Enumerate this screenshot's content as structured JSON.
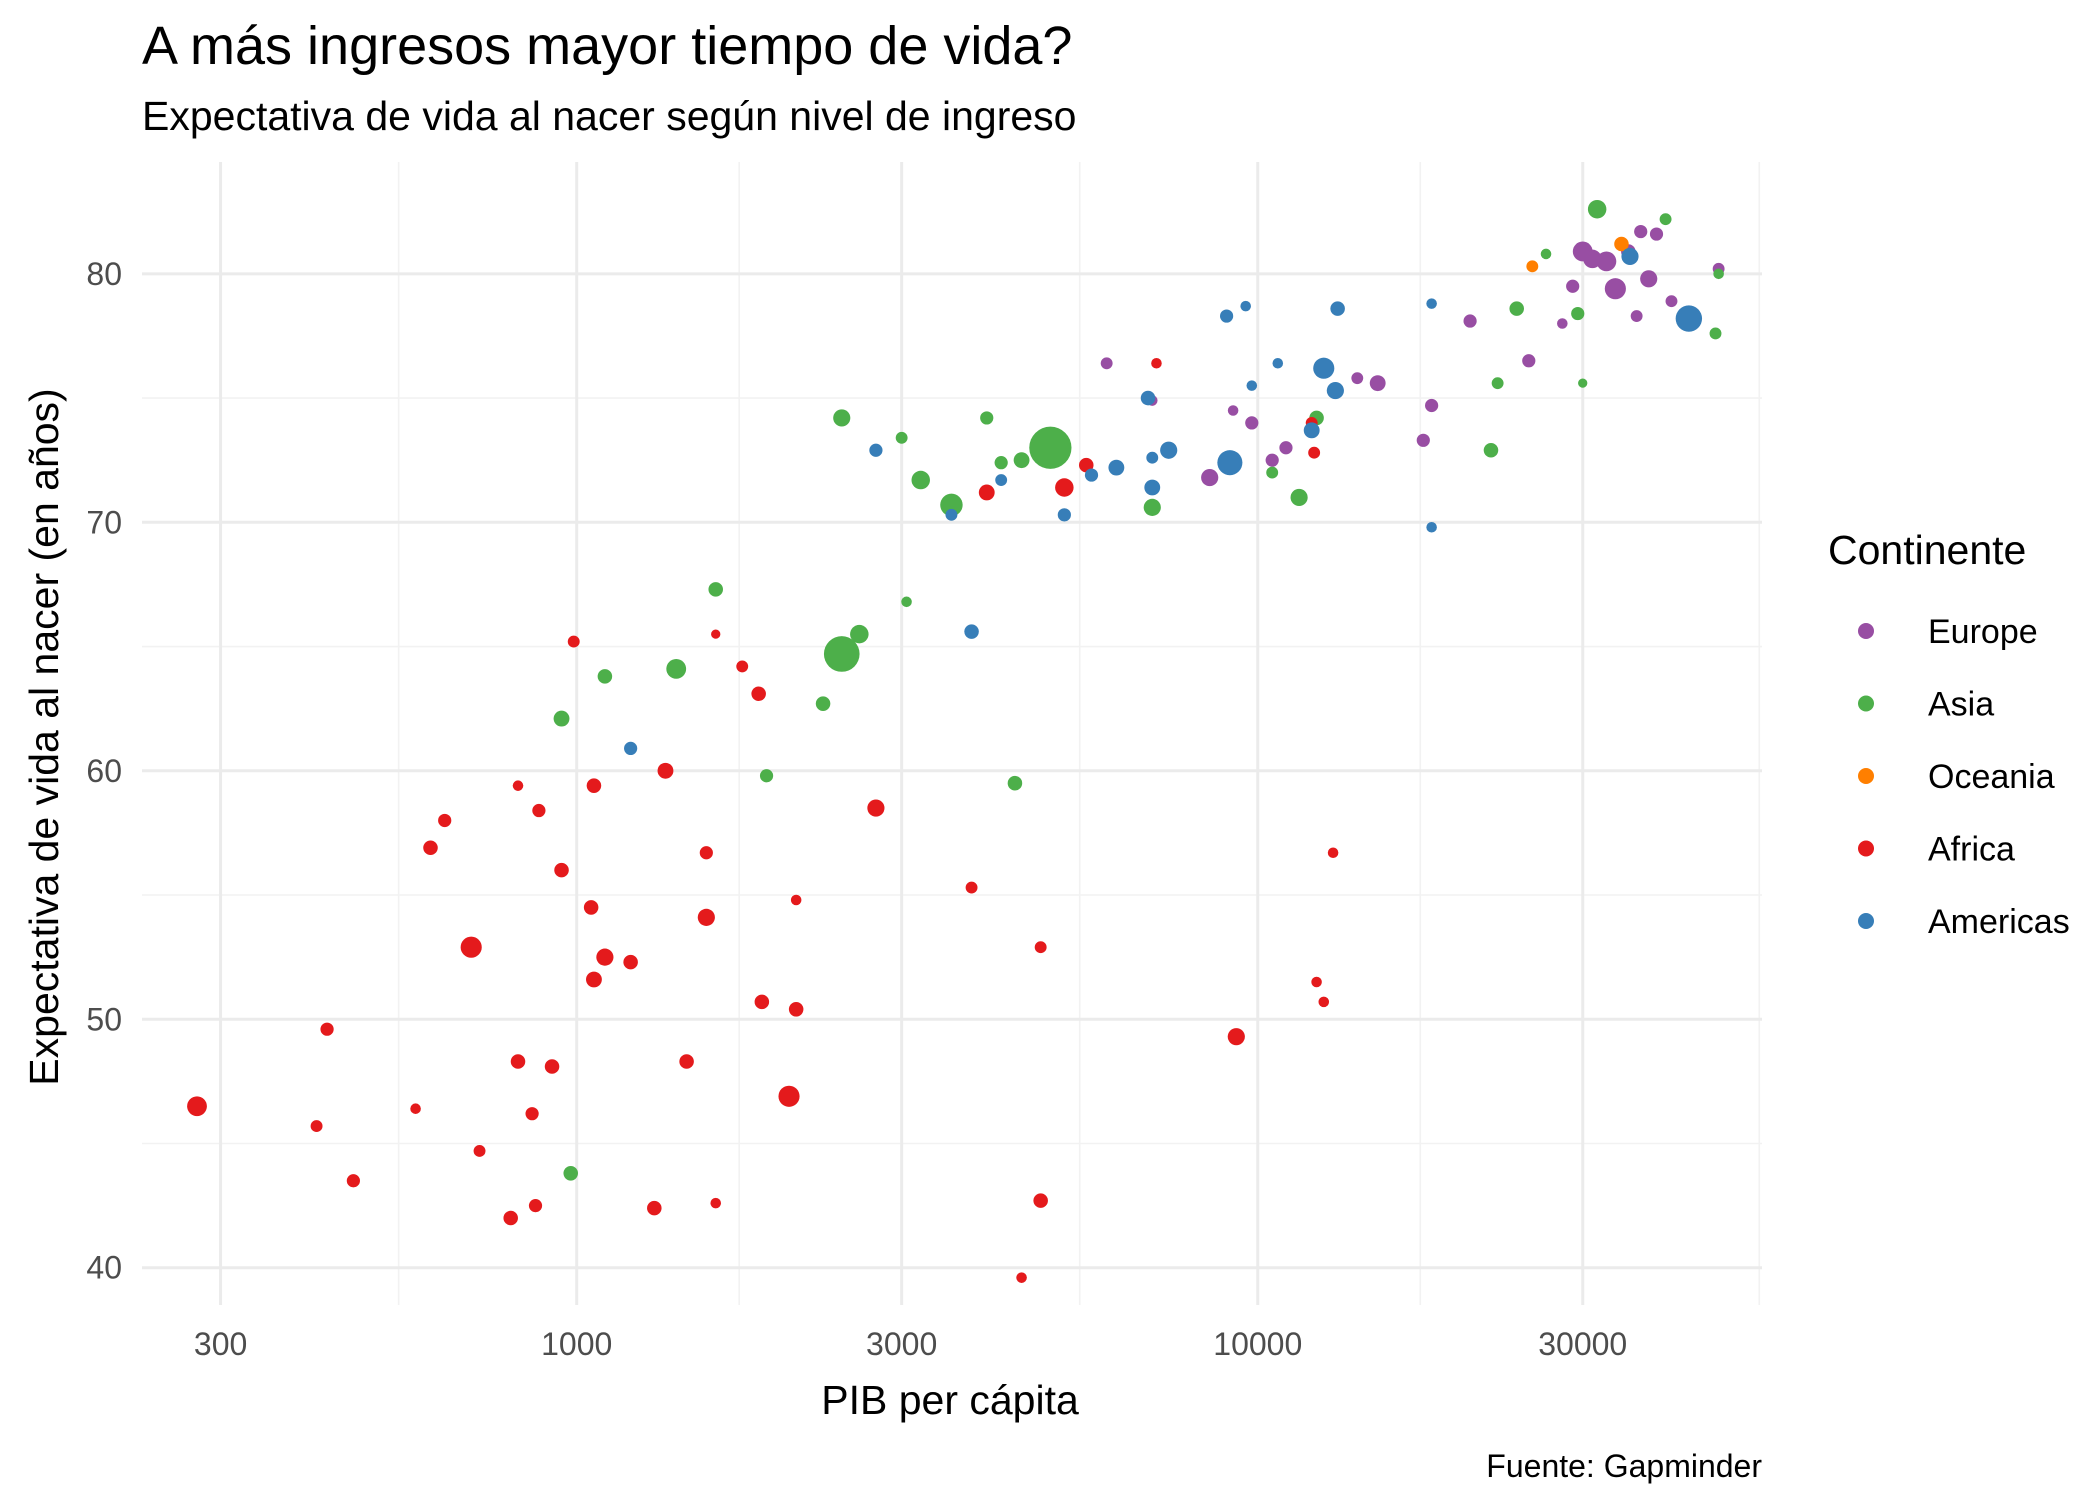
{
  "chart_data": {
    "type": "scatter",
    "title": "A más ingresos mayor tiempo de vida?",
    "subtitle": "Expectativa de vida al nacer según nivel de ingreso",
    "xlabel": "PIB per cápita",
    "ylabel": "Expectativa de vida al nacer (en años)",
    "caption": "Fuente: Gapminder",
    "x_scale": "log10",
    "xlim": [
      230,
      55000
    ],
    "ylim": [
      38.5,
      84.5
    ],
    "x_ticks": [
      300,
      1000,
      3000,
      10000,
      30000
    ],
    "x_tick_labels": [
      "300",
      "1000",
      "3000",
      "10000",
      "30000"
    ],
    "y_ticks": [
      40,
      50,
      60,
      70,
      80
    ],
    "y_tick_labels": [
      "40",
      "50",
      "60",
      "70",
      "80"
    ],
    "legend": {
      "title": "Continente",
      "position": "right",
      "entries": [
        {
          "label": "Europe",
          "color": "#984EA3"
        },
        {
          "label": "Asia",
          "color": "#4DAF4A"
        },
        {
          "label": "Oceania",
          "color": "#FF7F00"
        },
        {
          "label": "Africa",
          "color": "#E41A1C"
        },
        {
          "label": "Americas",
          "color": "#377EB8"
        }
      ]
    },
    "series": [
      {
        "name": "Europe",
        "color": "#984EA3",
        "points": [
          [
            30000,
            80.9,
            1.5
          ],
          [
            31000,
            80.6,
            1.4
          ],
          [
            32500,
            80.5,
            1.5
          ],
          [
            33500,
            79.4,
            1.6
          ],
          [
            35000,
            80.9,
            1.1
          ],
          [
            36000,
            78.3,
            0.9
          ],
          [
            37500,
            79.8,
            1.3
          ],
          [
            36500,
            81.7,
            1.0
          ],
          [
            38500,
            81.6,
            1.0
          ],
          [
            40500,
            78.9,
            0.9
          ],
          [
            47500,
            80.2,
            0.9
          ],
          [
            29000,
            79.5,
            1.0
          ],
          [
            28000,
            78.0,
            0.8
          ],
          [
            25000,
            76.5,
            1.0
          ],
          [
            20500,
            78.1,
            1.0
          ],
          [
            18000,
            74.7,
            1.0
          ],
          [
            17500,
            73.3,
            1.0
          ],
          [
            15000,
            75.6,
            1.2
          ],
          [
            14000,
            75.8,
            0.9
          ],
          [
            11000,
            73.0,
            1.0
          ],
          [
            10500,
            72.5,
            1.0
          ],
          [
            9800,
            74.0,
            1.0
          ],
          [
            9200,
            74.5,
            0.8
          ],
          [
            8500,
            71.8,
            1.3
          ],
          [
            6000,
            76.4,
            0.9
          ],
          [
            7000,
            74.9,
            0.8
          ]
        ]
      },
      {
        "name": "Asia",
        "color": "#4DAF4A",
        "points": [
          [
            31500,
            82.6,
            1.4
          ],
          [
            39700,
            82.2,
            0.9
          ],
          [
            26500,
            80.8,
            0.8
          ],
          [
            47500,
            80.0,
            0.8
          ],
          [
            29500,
            78.4,
            1.0
          ],
          [
            24000,
            78.6,
            1.1
          ],
          [
            47000,
            77.6,
            0.9
          ],
          [
            30000,
            75.6,
            0.7
          ],
          [
            22500,
            75.6,
            0.9
          ],
          [
            22000,
            72.9,
            1.1
          ],
          [
            12200,
            74.2,
            1.1
          ],
          [
            11500,
            71.0,
            1.3
          ],
          [
            10500,
            72.0,
            0.9
          ],
          [
            4500,
            72.5,
            1.2
          ],
          [
            4960,
            73.0,
            3.2
          ],
          [
            7000,
            70.6,
            1.3
          ],
          [
            4200,
            72.4,
            1.0
          ],
          [
            4000,
            74.2,
            1.0
          ],
          [
            3000,
            73.4,
            0.9
          ],
          [
            3200,
            71.7,
            1.4
          ],
          [
            3550,
            70.7,
            1.7
          ],
          [
            2450,
            74.2,
            1.3
          ],
          [
            3050,
            66.8,
            0.8
          ],
          [
            2600,
            65.5,
            1.4
          ],
          [
            2450,
            64.7,
            2.7
          ],
          [
            2300,
            62.7,
            1.1
          ],
          [
            1600,
            67.3,
            1.1
          ],
          [
            1400,
            64.1,
            1.5
          ],
          [
            1100,
            63.8,
            1.1
          ],
          [
            950,
            62.1,
            1.2
          ],
          [
            4400,
            59.5,
            1.1
          ],
          [
            1900,
            59.8,
            1.0
          ],
          [
            980,
            43.8,
            1.1
          ]
        ]
      },
      {
        "name": "Oceania",
        "color": "#FF7F00",
        "points": [
          [
            25300,
            80.3,
            0.9
          ],
          [
            34200,
            81.2,
            1.1
          ]
        ]
      },
      {
        "name": "Africa",
        "color": "#E41A1C",
        "points": [
          [
            12000,
            74.0,
            0.9
          ],
          [
            7100,
            76.4,
            0.8
          ],
          [
            5600,
            72.3,
            1.1
          ],
          [
            5200,
            71.4,
            1.4
          ],
          [
            4000,
            71.2,
            1.2
          ],
          [
            12100,
            72.8,
            0.9
          ],
          [
            9300,
            49.3,
            1.3
          ],
          [
            12900,
            56.7,
            0.8
          ],
          [
            12200,
            51.5,
            0.8
          ],
          [
            12500,
            50.7,
            0.8
          ],
          [
            4800,
            52.9,
            0.9
          ],
          [
            4800,
            42.7,
            1.1
          ],
          [
            4500,
            39.6,
            0.8
          ],
          [
            3800,
            55.3,
            0.9
          ],
          [
            2750,
            58.5,
            1.3
          ],
          [
            2100,
            54.8,
            0.8
          ],
          [
            2100,
            50.4,
            1.1
          ],
          [
            2050,
            46.9,
            1.6
          ],
          [
            1870,
            50.7,
            1.1
          ],
          [
            1750,
            64.2,
            0.9
          ],
          [
            1850,
            63.1,
            1.1
          ],
          [
            1600,
            65.5,
            0.7
          ],
          [
            1350,
            60.0,
            1.2
          ],
          [
            1550,
            56.7,
            1.0
          ],
          [
            1550,
            54.1,
            1.3
          ],
          [
            1450,
            48.3,
            1.1
          ],
          [
            1600,
            42.6,
            0.8
          ],
          [
            1300,
            42.4,
            1.1
          ],
          [
            1200,
            52.3,
            1.1
          ],
          [
            1100,
            52.5,
            1.3
          ],
          [
            1060,
            51.6,
            1.2
          ],
          [
            1050,
            54.5,
            1.1
          ],
          [
            1060,
            59.4,
            1.1
          ],
          [
            990,
            65.2,
            0.9
          ],
          [
            950,
            56.0,
            1.1
          ],
          [
            880,
            58.4,
            1.0
          ],
          [
            820,
            59.4,
            0.8
          ],
          [
            860,
            46.2,
            1.0
          ],
          [
            870,
            42.5,
            1.0
          ],
          [
            920,
            48.1,
            1.1
          ],
          [
            820,
            48.3,
            1.1
          ],
          [
            800,
            42.0,
            1.1
          ],
          [
            700,
            52.9,
            1.6
          ],
          [
            720,
            44.7,
            0.9
          ],
          [
            640,
            58.0,
            1.0
          ],
          [
            610,
            56.9,
            1.1
          ],
          [
            580,
            46.4,
            0.8
          ],
          [
            430,
            49.6,
            1.0
          ],
          [
            415,
            45.7,
            0.9
          ],
          [
            470,
            43.5,
            1.0
          ],
          [
            277,
            46.5,
            1.5
          ]
        ]
      },
      {
        "name": "Americas",
        "color": "#377EB8",
        "points": [
          [
            42950,
            78.2,
            2.0
          ],
          [
            35200,
            80.7,
            1.3
          ],
          [
            13100,
            78.6,
            1.1
          ],
          [
            9600,
            78.7,
            0.8
          ],
          [
            9000,
            78.3,
            1.0
          ],
          [
            12500,
            76.2,
            1.6
          ],
          [
            10700,
            76.4,
            0.8
          ],
          [
            9800,
            75.5,
            0.8
          ],
          [
            13000,
            75.3,
            1.3
          ],
          [
            12000,
            73.7,
            1.2
          ],
          [
            18000,
            78.8,
            0.8
          ],
          [
            18000,
            69.8,
            0.8
          ],
          [
            9100,
            72.4,
            1.9
          ],
          [
            7400,
            72.9,
            1.3
          ],
          [
            7000,
            72.6,
            0.9
          ],
          [
            7000,
            71.4,
            1.2
          ],
          [
            6900,
            75.0,
            1.1
          ],
          [
            6200,
            72.2,
            1.2
          ],
          [
            5700,
            71.9,
            1.0
          ],
          [
            5200,
            70.3,
            1.0
          ],
          [
            4200,
            71.7,
            0.9
          ],
          [
            3550,
            70.3,
            0.9
          ],
          [
            3800,
            65.6,
            1.1
          ],
          [
            2750,
            72.9,
            1.0
          ],
          [
            1200,
            60.9,
            1.0
          ]
        ]
      }
    ]
  }
}
